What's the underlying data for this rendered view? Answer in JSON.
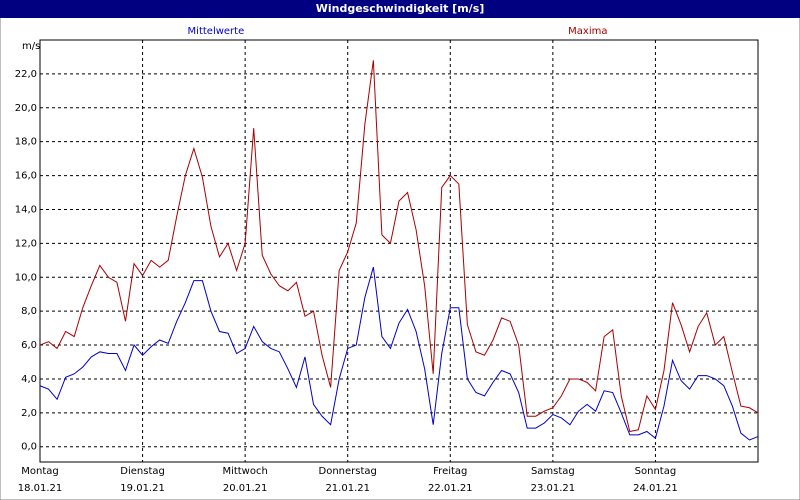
{
  "chart_data": {
    "type": "line",
    "title": "Windgeschwindigkeit [m/s]",
    "y_label": "m/s",
    "x": [
      0,
      2,
      4,
      6,
      8,
      10,
      12,
      14,
      16,
      18,
      20,
      22,
      24,
      26,
      28,
      30,
      32,
      34,
      36,
      38,
      40,
      42,
      44,
      46,
      48,
      50,
      52,
      54,
      56,
      58,
      60,
      62,
      64,
      66,
      68,
      70,
      72,
      74,
      76,
      78,
      80,
      82,
      84,
      86,
      88,
      90,
      92,
      94,
      96,
      98,
      100,
      102,
      104,
      106,
      108,
      110,
      112,
      114,
      116,
      118,
      120,
      122,
      124,
      126,
      128,
      130,
      132,
      134,
      136,
      138,
      140,
      142,
      144,
      146,
      148,
      150,
      152,
      154,
      156,
      158,
      160,
      162,
      164,
      166,
      168
    ],
    "xlim": [
      0,
      168
    ],
    "xticks": [
      {
        "value": 0,
        "label": "Montag",
        "date": "18.01.21"
      },
      {
        "value": 24,
        "label": "Dienstag",
        "date": "19.01.21"
      },
      {
        "value": 48,
        "label": "Mittwoch",
        "date": "20.01.21"
      },
      {
        "value": 72,
        "label": "Donnerstag",
        "date": "21.01.21"
      },
      {
        "value": 96,
        "label": "Freitag",
        "date": "22.01.21"
      },
      {
        "value": 120,
        "label": "Samstag",
        "date": "23.01.21"
      },
      {
        "value": 144,
        "label": "Sonntag",
        "date": "24.01.21"
      }
    ],
    "ylim": [
      -0.9,
      24
    ],
    "yticks": [
      {
        "value": 0,
        "label": "0,0"
      },
      {
        "value": 2,
        "label": "2,0"
      },
      {
        "value": 4,
        "label": "4,0"
      },
      {
        "value": 6,
        "label": "6,0"
      },
      {
        "value": 8,
        "label": "8,0"
      },
      {
        "value": 10,
        "label": "10,0"
      },
      {
        "value": 12,
        "label": "12,0"
      },
      {
        "value": 14,
        "label": "14,0"
      },
      {
        "value": 16,
        "label": "16,0"
      },
      {
        "value": 18,
        "label": "18,0"
      },
      {
        "value": 20,
        "label": "20,0"
      },
      {
        "value": 22,
        "label": "22,0"
      }
    ],
    "grid": true,
    "series": [
      {
        "name": "Mittelwerte",
        "color": "#0000cc",
        "values": [
          3.6,
          3.4,
          2.8,
          4.1,
          4.3,
          4.7,
          5.3,
          5.6,
          5.5,
          5.5,
          4.5,
          6.0,
          5.4,
          5.9,
          6.3,
          6.1,
          7.4,
          8.5,
          9.8,
          9.8,
          8.0,
          6.8,
          6.7,
          5.5,
          5.8,
          7.1,
          6.2,
          5.8,
          5.6,
          4.6,
          3.5,
          5.3,
          2.5,
          1.8,
          1.3,
          4.0,
          5.8,
          6.0,
          8.8,
          10.6,
          6.5,
          5.8,
          7.3,
          8.1,
          6.8,
          4.6,
          1.3,
          5.5,
          8.2,
          8.2,
          4.0,
          3.2,
          3.0,
          3.8,
          4.5,
          4.3,
          3.2,
          1.1,
          1.1,
          1.4,
          1.9,
          1.7,
          1.3,
          2.1,
          2.5,
          2.1,
          3.3,
          3.2,
          2.0,
          0.7,
          0.7,
          0.9,
          0.5,
          2.4,
          5.1,
          3.9,
          3.4,
          4.2,
          4.2,
          4.0,
          3.6,
          2.4,
          0.8,
          0.4,
          0.6
        ]
      },
      {
        "name": "Maxima",
        "color": "#aa0000",
        "values": [
          6.0,
          6.2,
          5.8,
          6.8,
          6.5,
          8.2,
          9.5,
          10.7,
          10.0,
          9.7,
          7.4,
          10.8,
          10.1,
          11.0,
          10.6,
          11.0,
          13.6,
          16.0,
          17.6,
          15.9,
          13.0,
          11.2,
          12.0,
          10.4,
          12.0,
          18.8,
          11.3,
          10.2,
          9.5,
          9.2,
          9.7,
          7.7,
          8.0,
          5.4,
          3.5,
          10.4,
          11.5,
          13.2,
          19.0,
          22.8,
          12.5,
          12.0,
          14.5,
          15.0,
          12.8,
          9.5,
          4.3,
          15.3,
          16.0,
          15.5,
          7.2,
          5.6,
          5.4,
          6.3,
          7.6,
          7.4,
          6.0,
          1.8,
          1.8,
          2.1,
          2.3,
          3.0,
          4.0,
          4.0,
          3.8,
          3.3,
          6.5,
          6.9,
          3.0,
          0.9,
          1.0,
          3.0,
          2.2,
          4.5,
          8.5,
          7.2,
          5.6,
          7.1,
          7.9,
          6.0,
          6.5,
          4.4,
          2.4,
          2.3,
          2.0
        ]
      }
    ]
  }
}
